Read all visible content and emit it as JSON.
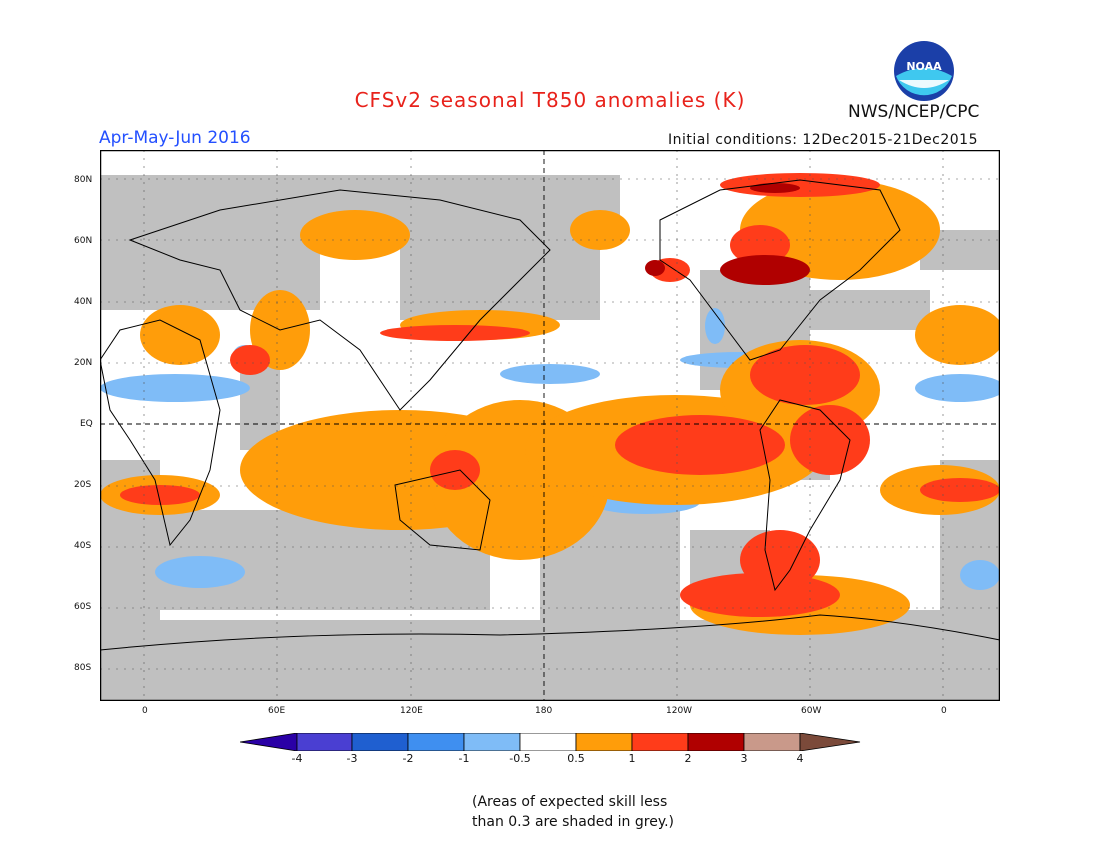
{
  "header": {
    "title": "CFSv2 seasonal T850 anomalies (K)",
    "season": "Apr-May-Jun 2016",
    "initial_conditions": "Initial conditions: 12Dec2015-21Dec2015",
    "agency": "NWS/NCEP/CPC",
    "logo_text": "NOAA"
  },
  "map": {
    "lat_labels": [
      "80N",
      "60N",
      "40N",
      "20N",
      "EQ",
      "20S",
      "40S",
      "60S",
      "80S"
    ],
    "lon_labels": [
      "0",
      "60E",
      "120E",
      "180",
      "120W",
      "60W",
      "0"
    ]
  },
  "colorbar": {
    "labels": [
      "-4",
      "-3",
      "-2",
      "-1",
      "-0.5",
      "0.5",
      "1",
      "2",
      "3",
      "4"
    ],
    "colors": [
      "#2a00a6",
      "#4a3fd2",
      "#1f5fd0",
      "#3f8ff0",
      "#7fbcf7",
      "#ffffff",
      "#ff9d0a",
      "#ff3c1a",
      "#b00000",
      "#c9998a",
      "#7b4a3a"
    ]
  },
  "palette": {
    "skill_grey": "#c0c0c0",
    "ocean_white": "#ffffff"
  },
  "footnote": {
    "line1": "(Areas of expected skill less",
    "line2": "than 0.3 are shaded in grey.)"
  }
}
